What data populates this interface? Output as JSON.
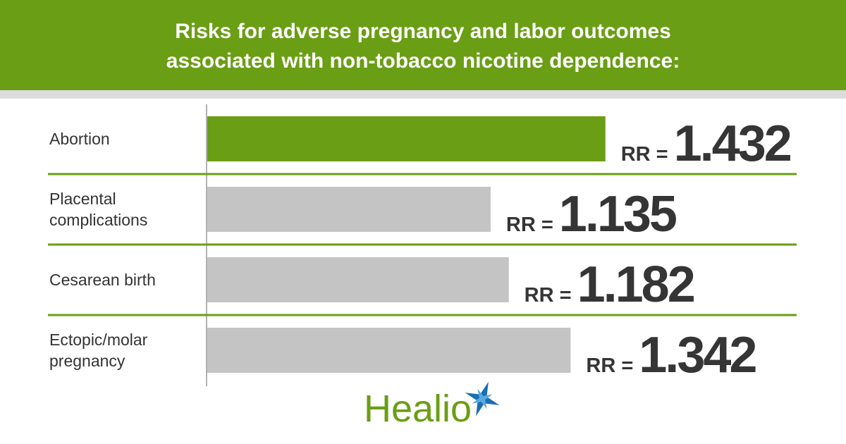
{
  "chart_data": {
    "type": "bar",
    "orientation": "horizontal",
    "title_lines": [
      "Risks for adverse pregnancy and labor outcomes",
      "associated with non-tobacco nicotine dependence:"
    ],
    "categories": [
      "Abortion",
      "Placental complications",
      "Cesarean birth",
      "Ectopic/molar pregnancy"
    ],
    "values": [
      1.432,
      1.135,
      1.182,
      1.342
    ],
    "value_prefix": "RR =",
    "colors": [
      "#6a9e14",
      "#c4c4c4",
      "#c4c4c4",
      "#c4c4c4"
    ],
    "xlim": [
      0.4,
      1.5
    ],
    "brand": "Healio"
  }
}
